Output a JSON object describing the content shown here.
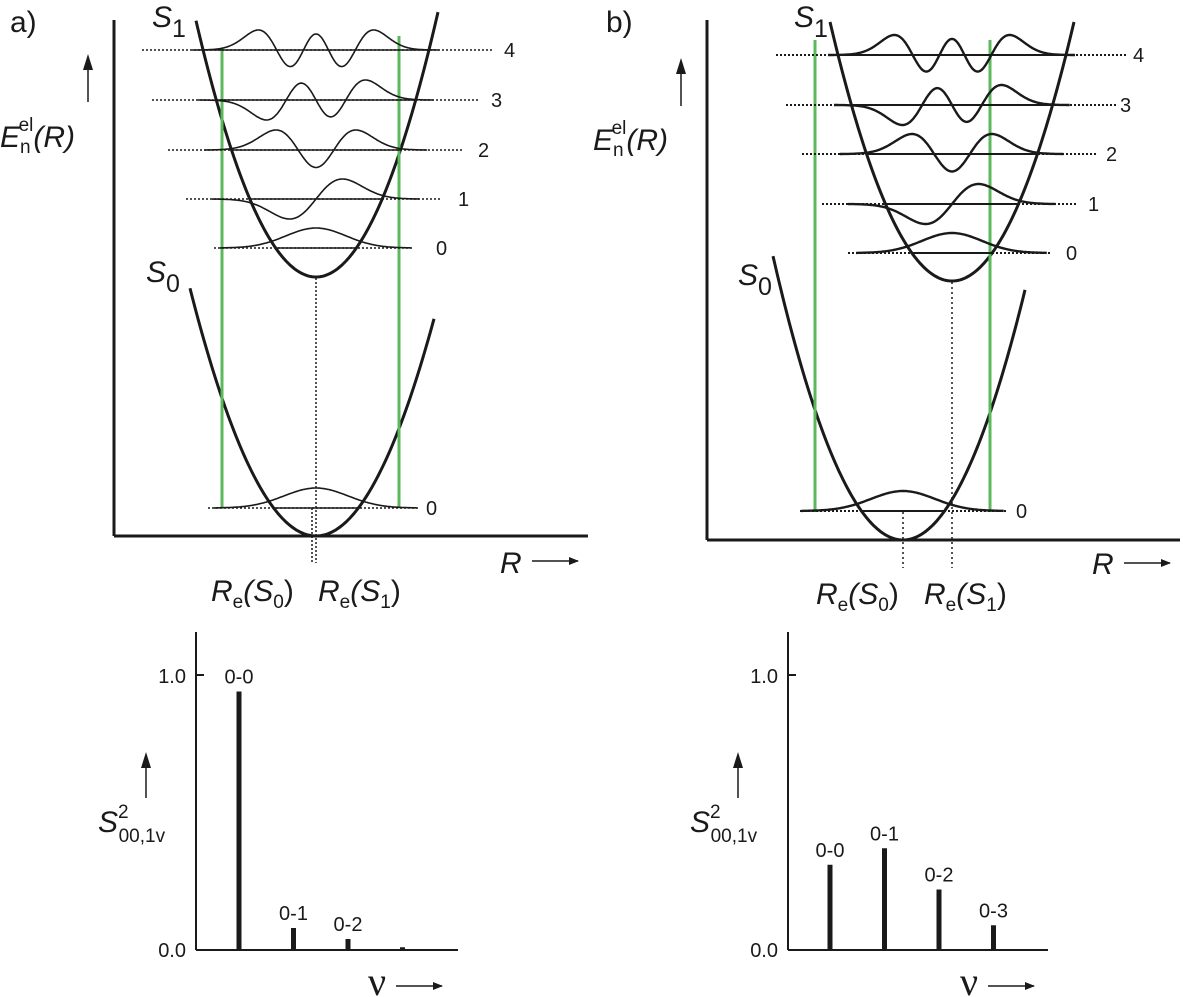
{
  "panels": [
    {
      "id": "a",
      "tag": "a)",
      "energy_axis": {
        "symbol": "E",
        "subscript": "n",
        "superscript": "el",
        "arg": "(R)"
      },
      "r_axis": "R",
      "state_upper": {
        "letter": "S",
        "index": "1"
      },
      "state_lower": {
        "letter": "S",
        "index": "0"
      },
      "upper_levels": [
        "0",
        "1",
        "2",
        "3",
        "4"
      ],
      "lower_levels": [
        "0"
      ],
      "re_labels": [
        {
          "R": "R",
          "sub": "e",
          "arg": "(S",
          "idx": "0",
          "close": ")"
        },
        {
          "R": "R",
          "sub": "e",
          "arg": "(S",
          "idx": "1",
          "close": ")"
        }
      ],
      "bar_plot": {
        "y_symbol": "S",
        "y_sup": "2",
        "y_sub": "00,1v",
        "ticks": [
          "0.0",
          "1.0"
        ],
        "x_symbol": "ν",
        "bars": [
          {
            "label": "0-0",
            "value": 0.94
          },
          {
            "label": "0-1",
            "value": 0.08
          },
          {
            "label": "0-2",
            "value": 0.04
          },
          {
            "label": "",
            "value": 0.01
          }
        ]
      }
    },
    {
      "id": "b",
      "tag": "b)",
      "energy_axis": {
        "symbol": "E",
        "subscript": "n",
        "superscript": "el",
        "arg": "(R)"
      },
      "r_axis": "R",
      "state_upper": {
        "letter": "S",
        "index": "1"
      },
      "state_lower": {
        "letter": "S",
        "index": "0"
      },
      "upper_levels": [
        "0",
        "1",
        "2",
        "3",
        "4"
      ],
      "lower_levels": [
        "0"
      ],
      "re_labels": [
        {
          "R": "R",
          "sub": "e",
          "arg": "(S",
          "idx": "0",
          "close": ")"
        },
        {
          "R": "R",
          "sub": "e",
          "arg": "(S",
          "idx": "1",
          "close": ")"
        }
      ],
      "bar_plot": {
        "y_symbol": "S",
        "y_sup": "2",
        "y_sub": "00,1v",
        "ticks": [
          "0.0",
          "1.0"
        ],
        "x_symbol": "ν",
        "bars": [
          {
            "label": "0-0",
            "value": 0.31
          },
          {
            "label": "0-1",
            "value": 0.37
          },
          {
            "label": "0-2",
            "value": 0.22
          },
          {
            "label": "0-3",
            "value": 0.09
          }
        ]
      }
    }
  ],
  "colors": {
    "ink": "#1a1a1a",
    "franck_condon": "#5cb85c"
  }
}
